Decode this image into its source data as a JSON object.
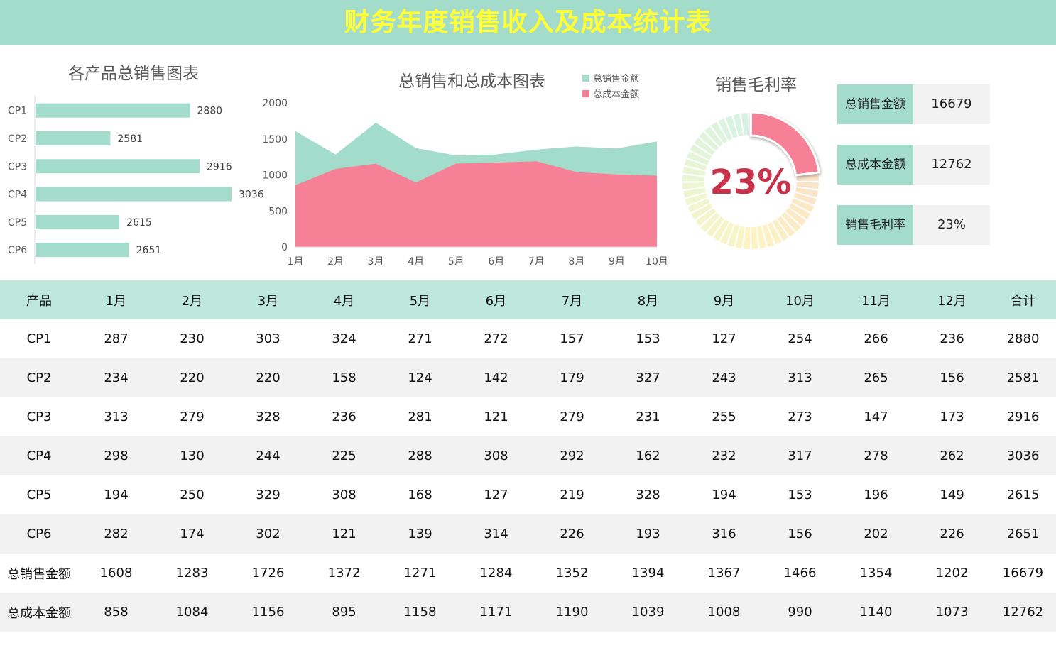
{
  "page": {
    "title": "财务年度销售收入及成本统计表"
  },
  "colors": {
    "accent": "#a3dccb",
    "header_row": "#bfe8dc",
    "cost": "#f68096",
    "title_text": "#ffff33",
    "alt_row": "#f2f2f2"
  },
  "kpi": [
    {
      "label": "总销售金额",
      "value": "16679"
    },
    {
      "label": "总成本金额",
      "value": "12762"
    },
    {
      "label": "销售毛利率",
      "value": "23%"
    }
  ],
  "table": {
    "headers": [
      "产品",
      "1月",
      "2月",
      "3月",
      "4月",
      "5月",
      "6月",
      "7月",
      "8月",
      "9月",
      "10月",
      "11月",
      "12月",
      "合计"
    ],
    "rows": [
      [
        "CP1",
        "287",
        "230",
        "303",
        "324",
        "271",
        "272",
        "157",
        "153",
        "127",
        "254",
        "266",
        "236",
        "2880"
      ],
      [
        "CP2",
        "234",
        "220",
        "220",
        "158",
        "124",
        "142",
        "179",
        "327",
        "243",
        "313",
        "265",
        "156",
        "2581"
      ],
      [
        "CP3",
        "313",
        "279",
        "328",
        "236",
        "281",
        "121",
        "279",
        "231",
        "255",
        "273",
        "147",
        "173",
        "2916"
      ],
      [
        "CP4",
        "298",
        "130",
        "244",
        "225",
        "288",
        "308",
        "292",
        "162",
        "232",
        "317",
        "278",
        "262",
        "3036"
      ],
      [
        "CP5",
        "194",
        "250",
        "329",
        "308",
        "168",
        "127",
        "219",
        "328",
        "194",
        "153",
        "196",
        "149",
        "2615"
      ],
      [
        "CP6",
        "282",
        "174",
        "302",
        "121",
        "139",
        "314",
        "226",
        "193",
        "316",
        "156",
        "202",
        "226",
        "2651"
      ],
      [
        "总销售金额",
        "1608",
        "1283",
        "1726",
        "1372",
        "1271",
        "1284",
        "1352",
        "1394",
        "1367",
        "1466",
        "1354",
        "1202",
        "16679"
      ],
      [
        "总成本金额",
        "858",
        "1084",
        "1156",
        "895",
        "1158",
        "1171",
        "1190",
        "1039",
        "1008",
        "990",
        "1140",
        "1073",
        "12762"
      ]
    ]
  },
  "chart_data": [
    {
      "type": "bar",
      "orientation": "horizontal",
      "title": "各产品总销售图表",
      "categories": [
        "CP1",
        "CP2",
        "CP3",
        "CP4",
        "CP5",
        "CP6"
      ],
      "values": [
        2880,
        2581,
        2916,
        3036,
        2615,
        2651
      ],
      "xlim": [
        2300,
        3100
      ],
      "color": "#a3dccb",
      "data_labels": true
    },
    {
      "type": "area",
      "title": "总销售和总成本图表",
      "categories": [
        "1月",
        "2月",
        "3月",
        "4月",
        "5月",
        "6月",
        "7月",
        "8月",
        "9月",
        "10月"
      ],
      "series": [
        {
          "name": "总销售金额",
          "color": "#a3dccb",
          "values": [
            1608,
            1283,
            1726,
            1372,
            1271,
            1284,
            1352,
            1394,
            1367,
            1466
          ]
        },
        {
          "name": "总成本金额",
          "color": "#f68096",
          "values": [
            858,
            1084,
            1156,
            895,
            1158,
            1171,
            1190,
            1039,
            1008,
            990
          ]
        }
      ],
      "ylim": [
        0,
        2000
      ],
      "yticks": [
        0,
        500,
        1000,
        1500,
        2000
      ],
      "legend": "top-right",
      "grid": false
    },
    {
      "type": "pie",
      "subtype": "donut",
      "title": "销售毛利率",
      "center_label": "23%",
      "value": 0.23,
      "highlight_color": "#f68096"
    }
  ]
}
